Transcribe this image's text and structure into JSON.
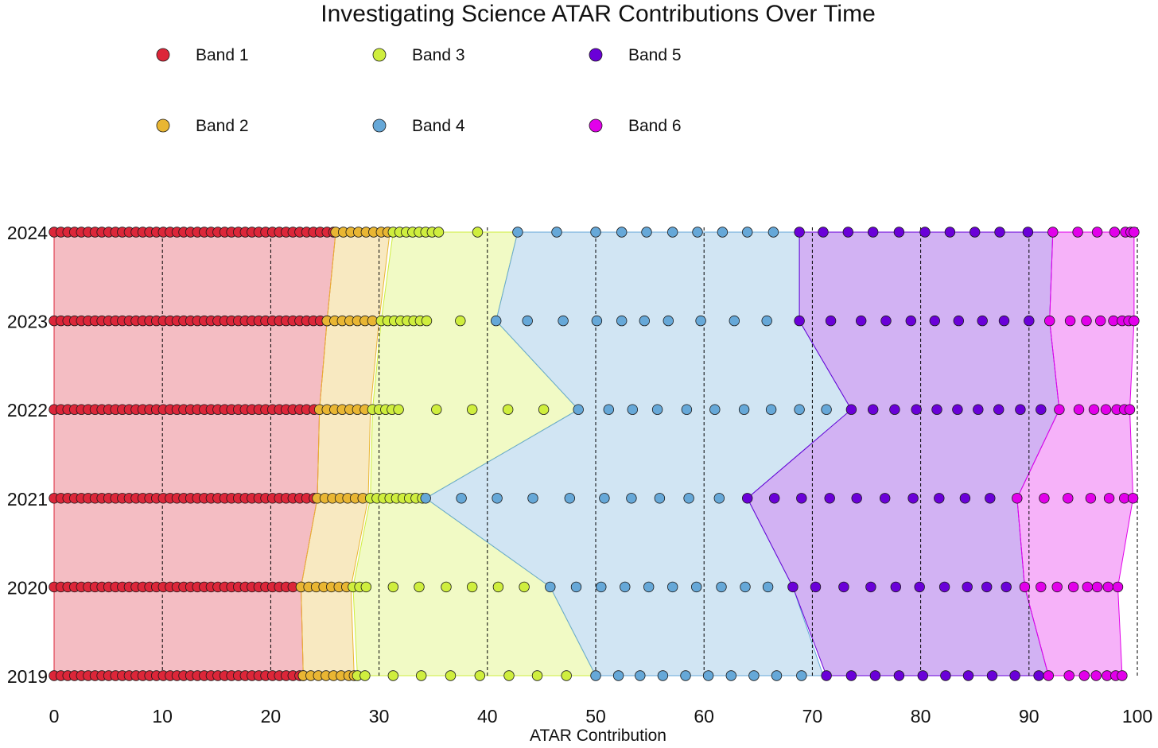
{
  "chart_data": {
    "type": "scatter",
    "title": "Investigating Science ATAR Contributions Over Time",
    "xlabel": "ATAR Contribution",
    "ylabel": "",
    "xlim": [
      0,
      100
    ],
    "x_ticks": [
      0,
      10,
      20,
      30,
      40,
      50,
      60,
      70,
      80,
      90,
      100
    ],
    "years": [
      "2019",
      "2020",
      "2021",
      "2022",
      "2023",
      "2024"
    ],
    "vertical_gridlines": [
      10,
      20,
      30,
      40,
      50,
      60,
      70,
      80,
      90,
      100
    ],
    "legend_placement": "top-left, 3 columns",
    "bands": [
      {
        "name": "Band 1",
        "color": "#dc2639"
      },
      {
        "name": "Band 2",
        "color": "#e9b633"
      },
      {
        "name": "Band 3",
        "color": "#cfee3e"
      },
      {
        "name": "Band 4",
        "color": "#66a8d8"
      },
      {
        "name": "Band 5",
        "color": "#6a00d8"
      },
      {
        "name": "Band 6",
        "color": "#e200ea"
      }
    ],
    "band_ranges": {
      "2019": [
        [
          0,
          23.0
        ],
        [
          23.0,
          27.7
        ],
        [
          28.0,
          50.0
        ],
        [
          50.0,
          71.0
        ],
        [
          71.3,
          91.8
        ],
        [
          91.8,
          98.6
        ]
      ],
      "2020": [
        [
          0,
          22.8
        ],
        [
          22.8,
          27.4
        ],
        [
          27.6,
          45.8
        ],
        [
          45.8,
          68.2
        ],
        [
          68.2,
          89.6
        ],
        [
          89.6,
          98.2
        ]
      ],
      "2021": [
        [
          0,
          24.3
        ],
        [
          24.3,
          29.0
        ],
        [
          29.2,
          34.3
        ],
        [
          34.3,
          64.0
        ],
        [
          64.0,
          88.9
        ],
        [
          88.9,
          99.6
        ]
      ],
      "2022": [
        [
          0,
          24.5
        ],
        [
          24.5,
          29.2
        ],
        [
          29.4,
          48.4
        ],
        [
          48.4,
          73.6
        ],
        [
          73.6,
          92.8
        ],
        [
          92.8,
          99.3
        ]
      ],
      "2023": [
        [
          0,
          25.2
        ],
        [
          25.2,
          30.0
        ],
        [
          30.2,
          40.8
        ],
        [
          40.8,
          68.8
        ],
        [
          68.8,
          91.9
        ],
        [
          91.9,
          99.7
        ]
      ],
      "2024": [
        [
          0,
          26.0
        ],
        [
          26.0,
          31.0
        ],
        [
          31.3,
          42.8
        ],
        [
          42.8,
          68.8
        ],
        [
          68.8,
          92.2
        ],
        [
          92.2,
          99.7
        ]
      ]
    },
    "points": {
      "2019": [
        {
          "band": 1,
          "x": [
            0,
            0.63,
            1.26,
            1.89,
            2.52,
            3.15,
            3.78,
            4.41,
            5.04,
            5.67,
            6.3,
            6.93,
            7.56,
            8.19,
            8.82,
            9.45,
            10.08,
            10.71,
            11.34,
            11.97,
            12.6,
            13.23,
            13.86,
            14.49,
            15.12,
            15.75,
            16.38,
            17.01,
            17.64,
            18.27,
            18.9,
            19.53,
            20.16,
            20.79,
            21.42,
            22.05,
            22.68,
            23.0
          ]
        },
        {
          "band": 2,
          "x": [
            23.0,
            23.7,
            24.4,
            25.1,
            25.8,
            26.5,
            27.2,
            27.7
          ]
        },
        {
          "band": 3,
          "x": [
            28.0,
            28.7,
            31.3,
            33.9,
            36.6,
            39.3,
            42.0,
            44.6,
            47.3
          ]
        },
        {
          "band": 4,
          "x": [
            50.0,
            52.1,
            54.1,
            56.2,
            58.3,
            60.4,
            62.5,
            64.6,
            66.7,
            69.0
          ]
        },
        {
          "band": 5,
          "x": [
            71.3,
            73.6,
            75.8,
            78.0,
            80.2,
            82.3,
            84.4,
            86.6,
            88.7,
            90.9
          ]
        },
        {
          "band": 6,
          "x": [
            91.8,
            93.7,
            95.1,
            96.2,
            97.2,
            98.0,
            98.6
          ]
        }
      ],
      "2020": [
        {
          "band": 1,
          "x": [
            0,
            0.63,
            1.26,
            1.89,
            2.52,
            3.15,
            3.78,
            4.41,
            5.04,
            5.67,
            6.3,
            6.93,
            7.56,
            8.19,
            8.82,
            9.45,
            10.08,
            10.71,
            11.34,
            11.97,
            12.6,
            13.23,
            13.86,
            14.49,
            15.12,
            15.75,
            16.38,
            17.01,
            17.64,
            18.27,
            18.9,
            19.53,
            20.16,
            20.79,
            21.42,
            22.05,
            22.8
          ]
        },
        {
          "band": 2,
          "x": [
            22.8,
            23.5,
            24.2,
            24.9,
            25.6,
            26.3,
            27.0
          ]
        },
        {
          "band": 3,
          "x": [
            27.6,
            28.2,
            28.8,
            31.3,
            33.7,
            36.2,
            38.6,
            41.0,
            43.4
          ]
        },
        {
          "band": 4,
          "x": [
            45.8,
            48.2,
            50.5,
            52.7,
            54.9,
            57.1,
            59.3,
            61.6,
            63.8,
            65.9
          ]
        },
        {
          "band": 5,
          "x": [
            68.2,
            70.3,
            72.9,
            75.4,
            77.7,
            79.9,
            82.2,
            84.3,
            86.1,
            87.9
          ]
        },
        {
          "band": 6,
          "x": [
            89.6,
            91.1,
            92.6,
            94.1,
            95.4,
            96.3,
            97.3,
            98.2
          ]
        }
      ],
      "2021": [
        {
          "band": 1,
          "x": [
            0,
            0.63,
            1.26,
            1.89,
            2.52,
            3.15,
            3.78,
            4.41,
            5.04,
            5.67,
            6.3,
            6.93,
            7.56,
            8.19,
            8.82,
            9.45,
            10.08,
            10.71,
            11.34,
            11.97,
            12.6,
            13.23,
            13.86,
            14.49,
            15.12,
            15.75,
            16.38,
            17.01,
            17.64,
            18.27,
            18.9,
            19.53,
            20.16,
            20.79,
            21.42,
            22.05,
            22.68,
            23.31,
            24.0
          ]
        },
        {
          "band": 2,
          "x": [
            24.3,
            25.0,
            25.7,
            26.4,
            27.1,
            27.8,
            28.5
          ]
        },
        {
          "band": 3,
          "x": [
            29.2,
            29.8,
            30.4,
            31.0,
            31.6,
            32.2,
            32.8,
            33.4,
            34.0
          ]
        },
        {
          "band": 4,
          "x": [
            34.3,
            37.6,
            40.9,
            44.2,
            47.6,
            50.8,
            53.3,
            55.9,
            58.6,
            61.4
          ]
        },
        {
          "band": 5,
          "x": [
            64.0,
            66.5,
            69.0,
            71.6,
            74.1,
            76.7,
            79.3,
            81.7,
            84.1,
            86.4
          ]
        },
        {
          "band": 6,
          "x": [
            88.9,
            91.4,
            93.6,
            95.7,
            97.4,
            98.8,
            99.6
          ]
        }
      ],
      "2022": [
        {
          "band": 1,
          "x": [
            0,
            0.63,
            1.26,
            1.89,
            2.52,
            3.15,
            3.78,
            4.41,
            5.04,
            5.67,
            6.3,
            6.93,
            7.56,
            8.19,
            8.82,
            9.45,
            10.08,
            10.71,
            11.34,
            11.97,
            12.6,
            13.23,
            13.86,
            14.49,
            15.12,
            15.75,
            16.38,
            17.01,
            17.64,
            18.27,
            18.9,
            19.53,
            20.16,
            20.79,
            21.42,
            22.05,
            22.68,
            23.31,
            24.0
          ]
        },
        {
          "band": 2,
          "x": [
            24.5,
            25.2,
            25.9,
            26.6,
            27.3,
            28.0,
            28.7
          ]
        },
        {
          "band": 3,
          "x": [
            29.4,
            30.0,
            30.6,
            31.2,
            31.8,
            35.3,
            38.6,
            41.9,
            45.2
          ]
        },
        {
          "band": 4,
          "x": [
            48.4,
            51.2,
            53.4,
            55.7,
            58.4,
            61.0,
            63.7,
            66.2,
            68.8,
            71.3
          ]
        },
        {
          "band": 5,
          "x": [
            73.6,
            75.6,
            77.6,
            79.6,
            81.5,
            83.4,
            85.3,
            87.2,
            89.2,
            91.1
          ]
        },
        {
          "band": 6,
          "x": [
            92.8,
            94.6,
            96.0,
            97.1,
            98.1,
            98.8,
            99.3
          ]
        }
      ],
      "2023": [
        {
          "band": 1,
          "x": [
            0,
            0.63,
            1.26,
            1.89,
            2.52,
            3.15,
            3.78,
            4.41,
            5.04,
            5.67,
            6.3,
            6.93,
            7.56,
            8.19,
            8.82,
            9.45,
            10.08,
            10.71,
            11.34,
            11.97,
            12.6,
            13.23,
            13.86,
            14.49,
            15.12,
            15.75,
            16.38,
            17.01,
            17.64,
            18.27,
            18.9,
            19.53,
            20.16,
            20.79,
            21.42,
            22.05,
            22.68,
            23.31,
            23.94,
            24.57,
            25.2
          ]
        },
        {
          "band": 2,
          "x": [
            25.2,
            25.9,
            26.6,
            27.3,
            28.0,
            28.7,
            29.4
          ]
        },
        {
          "band": 3,
          "x": [
            30.2,
            30.8,
            31.4,
            32.0,
            32.6,
            33.2,
            33.8,
            34.4,
            37.5
          ]
        },
        {
          "band": 4,
          "x": [
            40.8,
            43.7,
            47.0,
            50.1,
            52.4,
            54.5,
            56.7,
            59.7,
            62.8,
            65.8
          ]
        },
        {
          "band": 5,
          "x": [
            68.8,
            71.7,
            74.5,
            76.8,
            79.1,
            81.3,
            83.5,
            85.7,
            87.7,
            90.0
          ]
        },
        {
          "band": 6,
          "x": [
            91.9,
            93.8,
            95.3,
            96.6,
            97.8,
            98.6,
            99.2,
            99.7
          ]
        }
      ],
      "2024": [
        {
          "band": 1,
          "x": [
            0,
            0.63,
            1.26,
            1.89,
            2.52,
            3.15,
            3.78,
            4.41,
            5.04,
            5.67,
            6.3,
            6.93,
            7.56,
            8.19,
            8.82,
            9.45,
            10.08,
            10.71,
            11.34,
            11.97,
            12.6,
            13.23,
            13.86,
            14.49,
            15.12,
            15.75,
            16.38,
            17.01,
            17.64,
            18.27,
            18.9,
            19.53,
            20.16,
            20.79,
            21.42,
            22.05,
            22.68,
            23.31,
            23.94,
            24.57,
            25.2,
            25.8
          ]
        },
        {
          "band": 2,
          "x": [
            26.0,
            26.7,
            27.4,
            28.1,
            28.8,
            29.5,
            30.2,
            30.8
          ]
        },
        {
          "band": 3,
          "x": [
            31.3,
            31.9,
            32.5,
            33.1,
            33.7,
            34.3,
            34.9,
            35.5,
            39.1
          ]
        },
        {
          "band": 4,
          "x": [
            42.8,
            46.4,
            50.0,
            52.4,
            54.7,
            57.1,
            59.4,
            61.7,
            64.0,
            66.4
          ]
        },
        {
          "band": 5,
          "x": [
            68.8,
            71.0,
            73.3,
            75.6,
            78.0,
            80.4,
            82.7,
            85.0,
            87.3,
            89.9
          ]
        },
        {
          "band": 6,
          "x": [
            92.2,
            94.5,
            96.3,
            97.9,
            98.9,
            99.4,
            99.7
          ]
        }
      ]
    }
  }
}
